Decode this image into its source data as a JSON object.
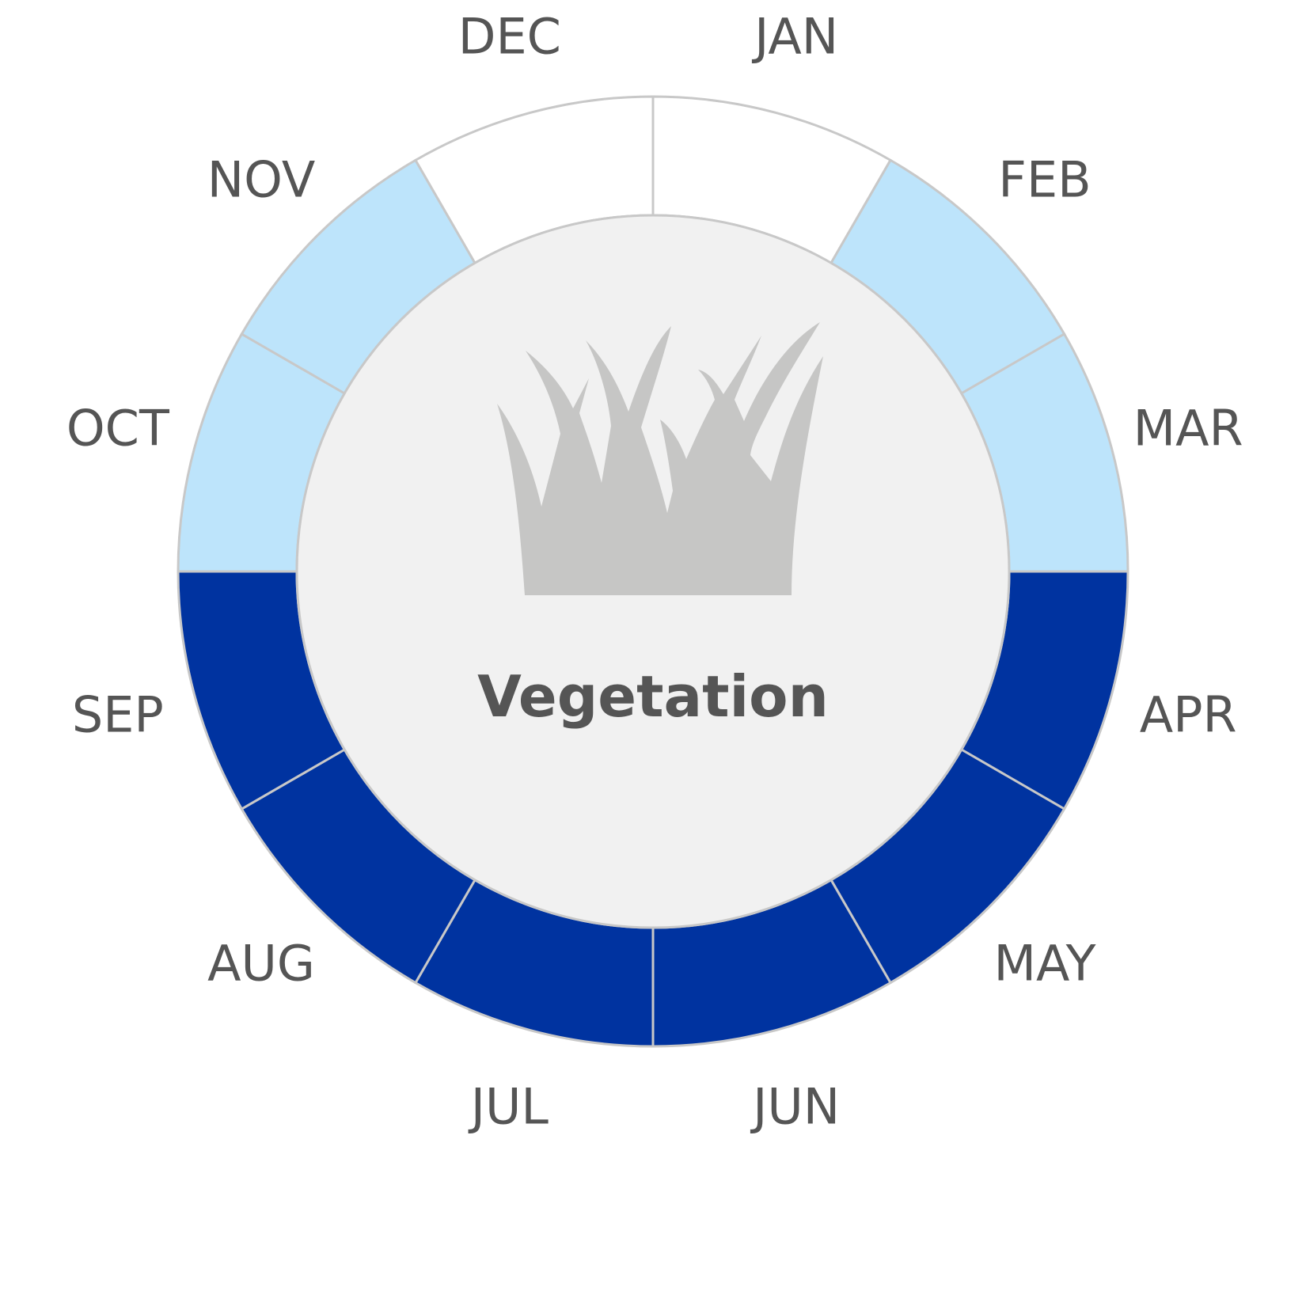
{
  "chart_data": {
    "type": "pie",
    "title": "Vegetation",
    "icon": "grass-icon",
    "categories": [
      "JAN",
      "FEB",
      "MAR",
      "APR",
      "MAY",
      "JUN",
      "JUL",
      "AUG",
      "SEP",
      "OCT",
      "NOV",
      "DEC"
    ],
    "values": [
      1,
      1,
      1,
      1,
      1,
      1,
      1,
      1,
      1,
      1,
      1,
      1
    ],
    "levels": [
      "none",
      "low",
      "low",
      "high",
      "high",
      "high",
      "high",
      "high",
      "high",
      "low",
      "low",
      "none"
    ],
    "level_colors": {
      "none": "#ffffff",
      "low": "#bde4fb",
      "high": "#0033a0"
    },
    "start_angle_deg": 0,
    "direction": "clockwise",
    "colors": {
      "ring_stroke": "#c8c8c8",
      "center_fill": "#f1f1f1",
      "icon_fill": "#c6c6c5",
      "text": "#555555"
    }
  }
}
